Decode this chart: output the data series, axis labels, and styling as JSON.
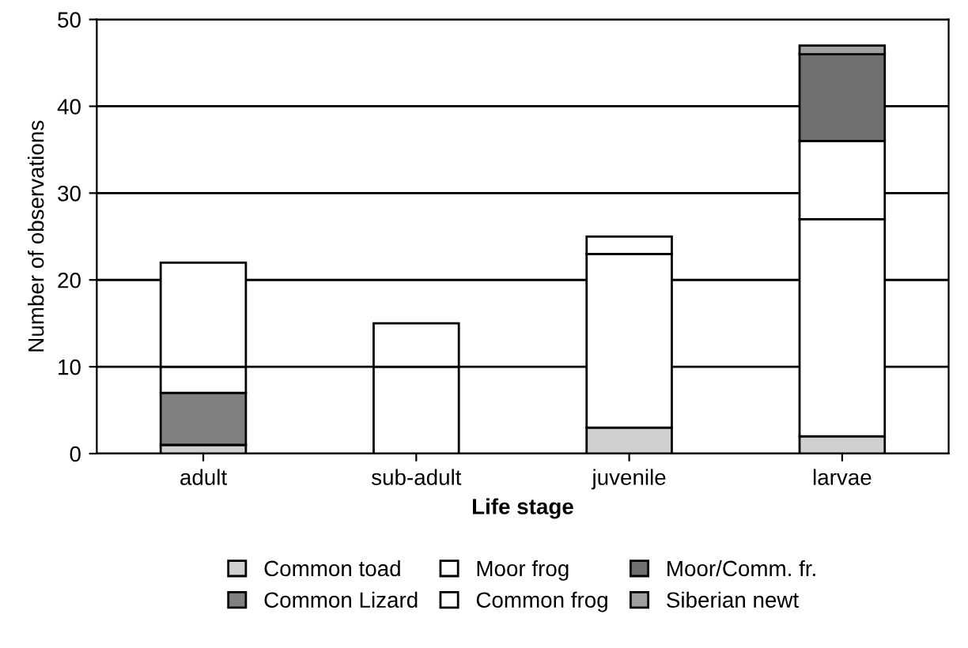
{
  "chart_data": {
    "type": "bar",
    "stacked": true,
    "xlabel": "Life stage",
    "ylabel": "Number of observations",
    "categories": [
      "adult",
      "sub-adult",
      "juvenile",
      "larvae"
    ],
    "series": [
      {
        "name": "Common toad",
        "color": "#d0d0d0",
        "values": [
          1,
          0,
          3,
          2
        ]
      },
      {
        "name": "Common Lizard",
        "color": "#808080",
        "values": [
          6,
          0,
          0,
          0
        ]
      },
      {
        "name": "Moor frog",
        "color": "#ffffff",
        "values": [
          3,
          10,
          20,
          25
        ]
      },
      {
        "name": "Common frog",
        "color": "#ffffff",
        "values": [
          12,
          5,
          2,
          9
        ]
      },
      {
        "name": "Moor/Comm. fr.",
        "color": "#707070",
        "values": [
          0,
          0,
          0,
          10
        ]
      },
      {
        "name": "Siberian newt",
        "color": "#a0a0a0",
        "values": [
          0,
          0,
          0,
          1
        ]
      }
    ],
    "ylim": [
      0,
      50
    ],
    "yticks": [
      0,
      10,
      20,
      30,
      40,
      50
    ],
    "grid": "y",
    "legend": "bottom"
  }
}
